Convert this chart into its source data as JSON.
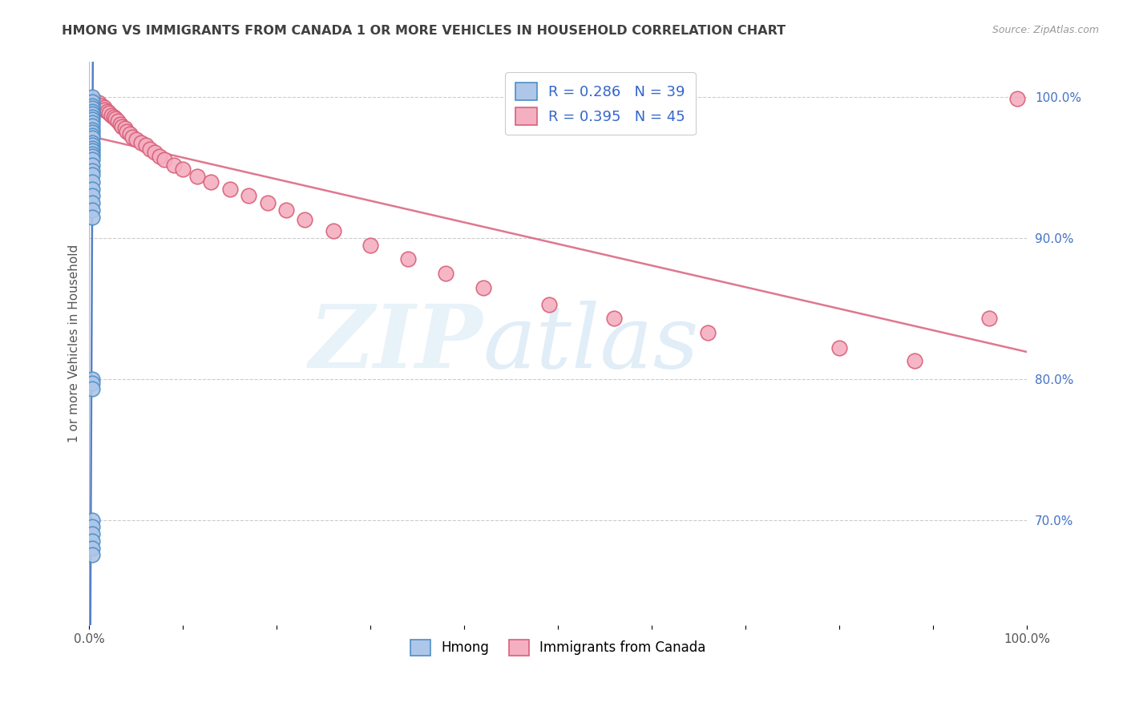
{
  "title": "HMONG VS IMMIGRANTS FROM CANADA 1 OR MORE VEHICLES IN HOUSEHOLD CORRELATION CHART",
  "source": "Source: ZipAtlas.com",
  "ylabel": "1 or more Vehicles in Household",
  "legend_hmong_R": 0.286,
  "legend_hmong_N": 39,
  "legend_canada_R": 0.395,
  "legend_canada_N": 45,
  "xlim": [
    0.0,
    1.0
  ],
  "ylim": [
    0.625,
    1.025
  ],
  "yticks": [
    0.7,
    0.8,
    0.9,
    1.0
  ],
  "ytick_labels": [
    "70.0%",
    "80.0%",
    "90.0%",
    "100.0%"
  ],
  "hmong_color": "#aec6e8",
  "canada_color": "#f4afc0",
  "hmong_edge_color": "#4e8fc8",
  "canada_edge_color": "#d9607a",
  "trend_hmong_color": "#4472c4",
  "trend_canada_color": "#d9607a",
  "background_color": "#ffffff",
  "grid_color": "#cccccc",
  "title_color": "#404040",
  "right_tick_color": "#4472c4",
  "hmong_scatter_x": [
    0.003,
    0.003,
    0.003,
    0.003,
    0.003,
    0.003,
    0.003,
    0.003,
    0.003,
    0.003,
    0.003,
    0.003,
    0.003,
    0.003,
    0.003,
    0.003,
    0.003,
    0.003,
    0.003,
    0.003,
    0.003,
    0.003,
    0.003,
    0.003,
    0.003,
    0.003,
    0.003,
    0.003,
    0.003,
    0.003,
    0.003,
    0.003,
    0.003,
    0.003,
    0.003,
    0.003,
    0.003,
    0.003,
    0.003
  ],
  "hmong_scatter_y": [
    1.0,
    0.997,
    0.994,
    0.992,
    0.99,
    0.988,
    0.986,
    0.984,
    0.982,
    0.98,
    0.977,
    0.975,
    0.973,
    0.971,
    0.968,
    0.966,
    0.964,
    0.962,
    0.96,
    0.958,
    0.956,
    0.952,
    0.948,
    0.945,
    0.94,
    0.935,
    0.93,
    0.925,
    0.92,
    0.915,
    0.8,
    0.797,
    0.793,
    0.7,
    0.695,
    0.69,
    0.685,
    0.68,
    0.675
  ],
  "canada_scatter_x": [
    0.005,
    0.01,
    0.013,
    0.016,
    0.016,
    0.019,
    0.021,
    0.024,
    0.026,
    0.028,
    0.03,
    0.033,
    0.035,
    0.038,
    0.04,
    0.043,
    0.046,
    0.05,
    0.055,
    0.06,
    0.065,
    0.07,
    0.075,
    0.08,
    0.09,
    0.1,
    0.115,
    0.13,
    0.15,
    0.17,
    0.19,
    0.21,
    0.23,
    0.26,
    0.3,
    0.34,
    0.38,
    0.42,
    0.49,
    0.56,
    0.66,
    0.8,
    0.88,
    0.96,
    0.99
  ],
  "canada_scatter_y": [
    0.998,
    0.996,
    0.994,
    0.993,
    0.991,
    0.99,
    0.989,
    0.987,
    0.986,
    0.985,
    0.983,
    0.981,
    0.979,
    0.978,
    0.976,
    0.974,
    0.972,
    0.97,
    0.968,
    0.966,
    0.963,
    0.961,
    0.958,
    0.956,
    0.952,
    0.949,
    0.944,
    0.94,
    0.935,
    0.93,
    0.925,
    0.92,
    0.913,
    0.905,
    0.895,
    0.885,
    0.875,
    0.865,
    0.853,
    0.843,
    0.833,
    0.822,
    0.813,
    0.843,
    0.999
  ],
  "trend_hmong_x0": 0.0,
  "trend_hmong_x1": 1.0,
  "trend_canada_x0": 0.0,
  "trend_canada_x1": 1.0
}
